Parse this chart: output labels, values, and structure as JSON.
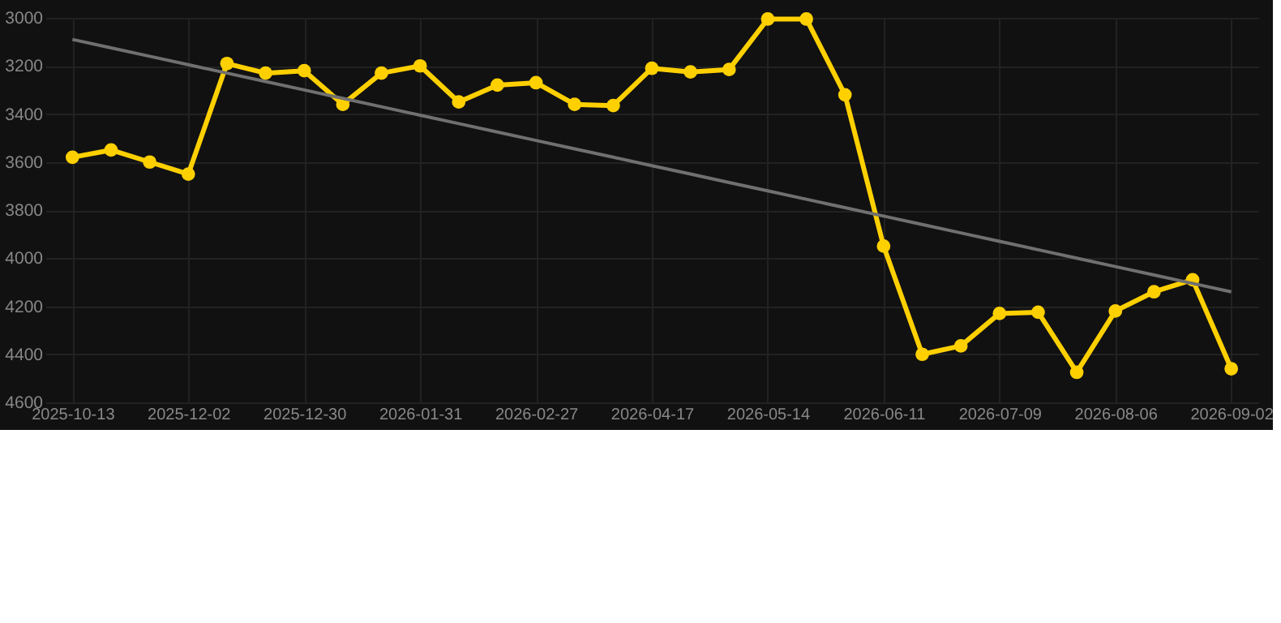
{
  "chart_data": {
    "type": "line",
    "categories": [
      "2025-10-13",
      null,
      null,
      "2025-12-02",
      null,
      null,
      "2025-12-30",
      null,
      null,
      "2026-01-31",
      null,
      null,
      "2026-02-27",
      null,
      null,
      "2026-04-17",
      null,
      null,
      "2026-05-14",
      null,
      null,
      "2026-06-11",
      null,
      null,
      "2026-07-09",
      null,
      null,
      "2026-08-06",
      null,
      null,
      "2026-09-02"
    ],
    "series": [
      {
        "color": "#ffd000",
        "marker": "circle",
        "values": [
          3580,
          3550,
          3600,
          3650,
          3190,
          3230,
          3220,
          3360,
          3230,
          3200,
          3350,
          3280,
          3270,
          3360,
          3365,
          3210,
          3225,
          3215,
          3005,
          3005,
          3320,
          3950,
          4400,
          4365,
          4230,
          4225,
          4475,
          4220,
          4140,
          4090,
          4460
        ]
      },
      {
        "type": "line",
        "color": "#707070",
        "marker": "none",
        "values": [
          3090,
          3125,
          3160,
          3195,
          3230,
          3265,
          3300,
          3335,
          3370,
          3405,
          3440,
          3475,
          3510,
          3545,
          3580,
          3615,
          3650,
          3685,
          3720,
          3755,
          3790,
          3825,
          3860,
          3895,
          3930,
          3965,
          4000,
          4035,
          4070,
          4105,
          4140
        ]
      }
    ],
    "ylim": [
      4600,
      3000
    ],
    "yticks": [
      3000,
      3200,
      3400,
      3600,
      3800,
      4000,
      4200,
      4400,
      4600
    ],
    "grid": true
  }
}
